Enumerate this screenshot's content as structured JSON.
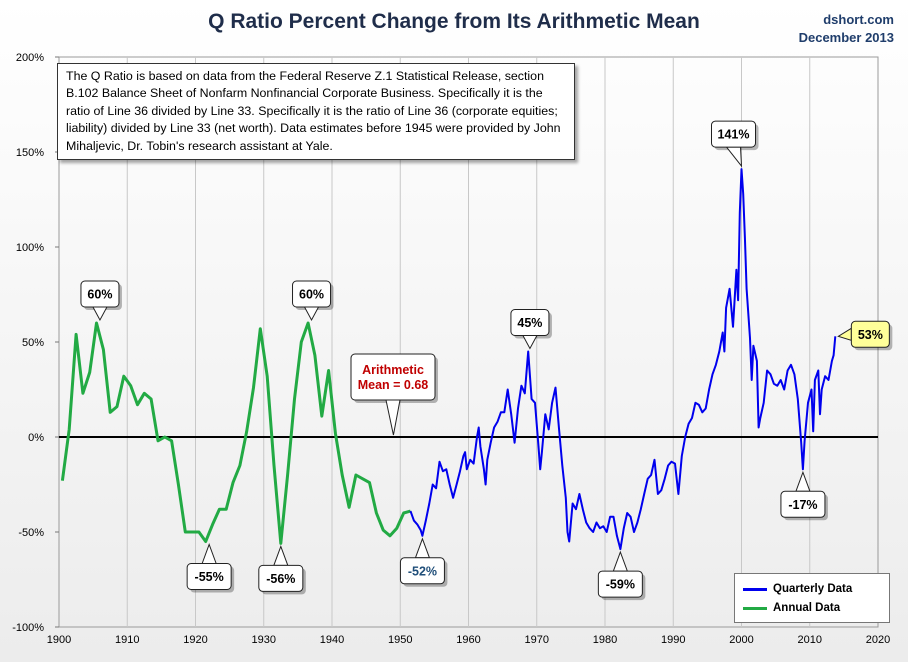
{
  "title": "Q Ratio Percent Change from Its Arithmetic Mean",
  "credit_site": "dshort.com",
  "credit_date": "December 2013",
  "note": "The Q Ratio is based on data from the Federal Reserve Z.1 Statistical Release, section B.102 Balance Sheet of Nonfarm Nonfinancial Corporate Business. Specifically it is the ratio of Line 36 divided by Line 33. Specifically it is the ratio of Line 36 (corporate equities; liability) divided by Line 33 (net worth). Data estimates before 1945 were provided by John Mihaljevic, Dr. Tobin's research assistant at Yale.",
  "mean_callout": {
    "line1": "Arithmetic",
    "line2": "Mean = 0.68",
    "color": "#c00000"
  },
  "colors": {
    "quarterly": "#0000ee",
    "annual": "#22aa44",
    "zero_line": "#000000",
    "grid": "#c8c8c8",
    "highlight_fill": "#ffff99"
  },
  "legend": {
    "quarterly": "Quarterly Data",
    "annual": "Annual Data"
  },
  "chart_data": {
    "type": "line",
    "xlim": [
      1900,
      2020
    ],
    "ylim": [
      -100,
      200
    ],
    "x_ticks": [
      "1900",
      "1910",
      "1920",
      "1930",
      "1940",
      "1950",
      "1960",
      "1970",
      "1980",
      "1990",
      "2000",
      "2010",
      "2020"
    ],
    "y_ticks": [
      "200%",
      "150%",
      "100%",
      "50%",
      "0%",
      "-50%",
      "-100%"
    ],
    "grid": "vertical",
    "legend_position": "bottom-right",
    "series": [
      {
        "name": "Annual Data",
        "points": [
          [
            1900.5,
            -23
          ],
          [
            1901.5,
            4
          ],
          [
            1902.5,
            54
          ],
          [
            1903.5,
            23
          ],
          [
            1904.5,
            34
          ],
          [
            1905.5,
            60
          ],
          [
            1906.5,
            46
          ],
          [
            1907.5,
            13
          ],
          [
            1908.5,
            16
          ],
          [
            1909.5,
            32
          ],
          [
            1910.5,
            27
          ],
          [
            1911.5,
            17
          ],
          [
            1912.5,
            23
          ],
          [
            1913.5,
            20
          ],
          [
            1914.5,
            -2
          ],
          [
            1915.5,
            0
          ],
          [
            1916.5,
            -2
          ],
          [
            1917.5,
            -25
          ],
          [
            1918.5,
            -50
          ],
          [
            1919.5,
            -50
          ],
          [
            1920.5,
            -50
          ],
          [
            1921.5,
            -55
          ],
          [
            1922.5,
            -46
          ],
          [
            1923.5,
            -38
          ],
          [
            1924.5,
            -38
          ],
          [
            1925.5,
            -24
          ],
          [
            1926.5,
            -15
          ],
          [
            1927.5,
            3
          ],
          [
            1928.5,
            26
          ],
          [
            1929.5,
            57
          ],
          [
            1930.5,
            32
          ],
          [
            1931.5,
            -15
          ],
          [
            1932.5,
            -56
          ],
          [
            1933.5,
            -20
          ],
          [
            1934.5,
            20
          ],
          [
            1935.5,
            50
          ],
          [
            1936.5,
            60
          ],
          [
            1937.5,
            43
          ],
          [
            1938.5,
            11
          ],
          [
            1939.5,
            35
          ],
          [
            1940.5,
            2
          ],
          [
            1941.5,
            -20
          ],
          [
            1942.5,
            -37
          ],
          [
            1943.5,
            -20
          ],
          [
            1944.5,
            -22
          ],
          [
            1945.5,
            -24
          ],
          [
            1946.5,
            -40
          ],
          [
            1947.5,
            -49
          ],
          [
            1948.5,
            -52
          ],
          [
            1949.5,
            -48
          ],
          [
            1950.5,
            -40
          ],
          [
            1951.5,
            -39
          ]
        ]
      },
      {
        "name": "Quarterly Data",
        "points": [
          [
            1951.5,
            -39
          ],
          [
            1952,
            -44
          ],
          [
            1952.5,
            -46
          ],
          [
            1953,
            -49
          ],
          [
            1953.25,
            -52
          ],
          [
            1953.75,
            -44
          ],
          [
            1954.25,
            -35
          ],
          [
            1954.75,
            -25
          ],
          [
            1955.25,
            -27
          ],
          [
            1955.75,
            -13
          ],
          [
            1956.25,
            -18
          ],
          [
            1956.75,
            -17
          ],
          [
            1957.25,
            -25
          ],
          [
            1957.75,
            -32
          ],
          [
            1958.25,
            -25
          ],
          [
            1958.75,
            -18
          ],
          [
            1959.25,
            -10
          ],
          [
            1959.5,
            -8
          ],
          [
            1959.75,
            -17
          ],
          [
            1960.25,
            -12
          ],
          [
            1960.75,
            -14
          ],
          [
            1961.25,
            0
          ],
          [
            1961.5,
            5
          ],
          [
            1961.75,
            -5
          ],
          [
            1962.25,
            -17
          ],
          [
            1962.5,
            -25
          ],
          [
            1962.75,
            -12
          ],
          [
            1963.25,
            -3
          ],
          [
            1963.75,
            5
          ],
          [
            1964.25,
            8
          ],
          [
            1964.75,
            13
          ],
          [
            1965.25,
            13
          ],
          [
            1965.75,
            25
          ],
          [
            1966.25,
            12
          ],
          [
            1966.75,
            -3
          ],
          [
            1967.25,
            15
          ],
          [
            1967.75,
            27
          ],
          [
            1968.25,
            23
          ],
          [
            1968.75,
            45
          ],
          [
            1969.25,
            20
          ],
          [
            1969.75,
            18
          ],
          [
            1970.25,
            -5
          ],
          [
            1970.5,
            -17
          ],
          [
            1970.75,
            -8
          ],
          [
            1971.25,
            12
          ],
          [
            1971.75,
            4
          ],
          [
            1972.25,
            18
          ],
          [
            1972.75,
            26
          ],
          [
            1973.25,
            5
          ],
          [
            1973.75,
            -15
          ],
          [
            1974.25,
            -32
          ],
          [
            1974.5,
            -50
          ],
          [
            1974.75,
            -55
          ],
          [
            1975.25,
            -35
          ],
          [
            1975.75,
            -38
          ],
          [
            1976.25,
            -30
          ],
          [
            1976.75,
            -38
          ],
          [
            1977.25,
            -45
          ],
          [
            1977.75,
            -48
          ],
          [
            1978.25,
            -50
          ],
          [
            1978.75,
            -45
          ],
          [
            1979.25,
            -48
          ],
          [
            1979.75,
            -47
          ],
          [
            1980.25,
            -50
          ],
          [
            1980.75,
            -42
          ],
          [
            1981.25,
            -42
          ],
          [
            1981.75,
            -52
          ],
          [
            1982.25,
            -59
          ],
          [
            1982.75,
            -48
          ],
          [
            1983.25,
            -40
          ],
          [
            1983.75,
            -42
          ],
          [
            1984.25,
            -50
          ],
          [
            1984.75,
            -45
          ],
          [
            1985.25,
            -38
          ],
          [
            1985.75,
            -30
          ],
          [
            1986.25,
            -22
          ],
          [
            1986.75,
            -20
          ],
          [
            1987.25,
            -12
          ],
          [
            1987.75,
            -30
          ],
          [
            1988.25,
            -28
          ],
          [
            1988.75,
            -22
          ],
          [
            1989.25,
            -15
          ],
          [
            1989.75,
            -13
          ],
          [
            1990.25,
            -14
          ],
          [
            1990.75,
            -30
          ],
          [
            1991.25,
            -10
          ],
          [
            1991.75,
            0
          ],
          [
            1992.25,
            7
          ],
          [
            1992.75,
            10
          ],
          [
            1993.25,
            18
          ],
          [
            1993.75,
            17
          ],
          [
            1994.25,
            13
          ],
          [
            1994.75,
            15
          ],
          [
            1995.25,
            25
          ],
          [
            1995.75,
            33
          ],
          [
            1996.25,
            38
          ],
          [
            1996.75,
            45
          ],
          [
            1997.25,
            55
          ],
          [
            1997.5,
            45
          ],
          [
            1997.75,
            68
          ],
          [
            1998.25,
            78
          ],
          [
            1998.75,
            58
          ],
          [
            1999.25,
            88
          ],
          [
            1999.5,
            72
          ],
          [
            1999.75,
            118
          ],
          [
            2000,
            141
          ],
          [
            2000.25,
            128
          ],
          [
            2000.5,
            105
          ],
          [
            2000.75,
            78
          ],
          [
            2001.25,
            52
          ],
          [
            2001.5,
            30
          ],
          [
            2001.75,
            48
          ],
          [
            2002.25,
            40
          ],
          [
            2002.5,
            5
          ],
          [
            2002.75,
            10
          ],
          [
            2003.25,
            18
          ],
          [
            2003.75,
            35
          ],
          [
            2004.25,
            33
          ],
          [
            2004.75,
            28
          ],
          [
            2005.25,
            27
          ],
          [
            2005.75,
            30
          ],
          [
            2006.25,
            25
          ],
          [
            2006.75,
            35
          ],
          [
            2007.25,
            38
          ],
          [
            2007.75,
            33
          ],
          [
            2008.25,
            20
          ],
          [
            2008.75,
            -3
          ],
          [
            2009.0,
            -17
          ],
          [
            2009.25,
            -2
          ],
          [
            2009.75,
            18
          ],
          [
            2010.25,
            25
          ],
          [
            2010.5,
            3
          ],
          [
            2010.75,
            30
          ],
          [
            2011.25,
            35
          ],
          [
            2011.5,
            12
          ],
          [
            2011.75,
            25
          ],
          [
            2012.25,
            32
          ],
          [
            2012.75,
            30
          ],
          [
            2013.25,
            40
          ],
          [
            2013.5,
            43
          ],
          [
            2013.75,
            53
          ]
        ]
      }
    ],
    "annotations": [
      {
        "label": "60%",
        "x": 1906,
        "y": 60,
        "side": "top"
      },
      {
        "label": "60%",
        "x": 1937,
        "y": 60,
        "side": "top"
      },
      {
        "label": "45%",
        "x": 1969,
        "y": 45,
        "side": "top"
      },
      {
        "label": "141%",
        "x": 2000,
        "y": 141,
        "side": "top"
      },
      {
        "label": "-55%",
        "x": 1922,
        "y": -55,
        "side": "bottom"
      },
      {
        "label": "-56%",
        "x": 1932.5,
        "y": -56,
        "side": "bottom"
      },
      {
        "label": "-52%",
        "x": 1953.25,
        "y": -52,
        "side": "bottom",
        "color": "#1f4e79"
      },
      {
        "label": "-59%",
        "x": 1982.25,
        "y": -59,
        "side": "bottom"
      },
      {
        "label": "-17%",
        "x": 2009,
        "y": -17,
        "side": "bottom"
      },
      {
        "label": "53%",
        "x": 2013.75,
        "y": 53,
        "side": "right",
        "highlight": true
      }
    ]
  }
}
